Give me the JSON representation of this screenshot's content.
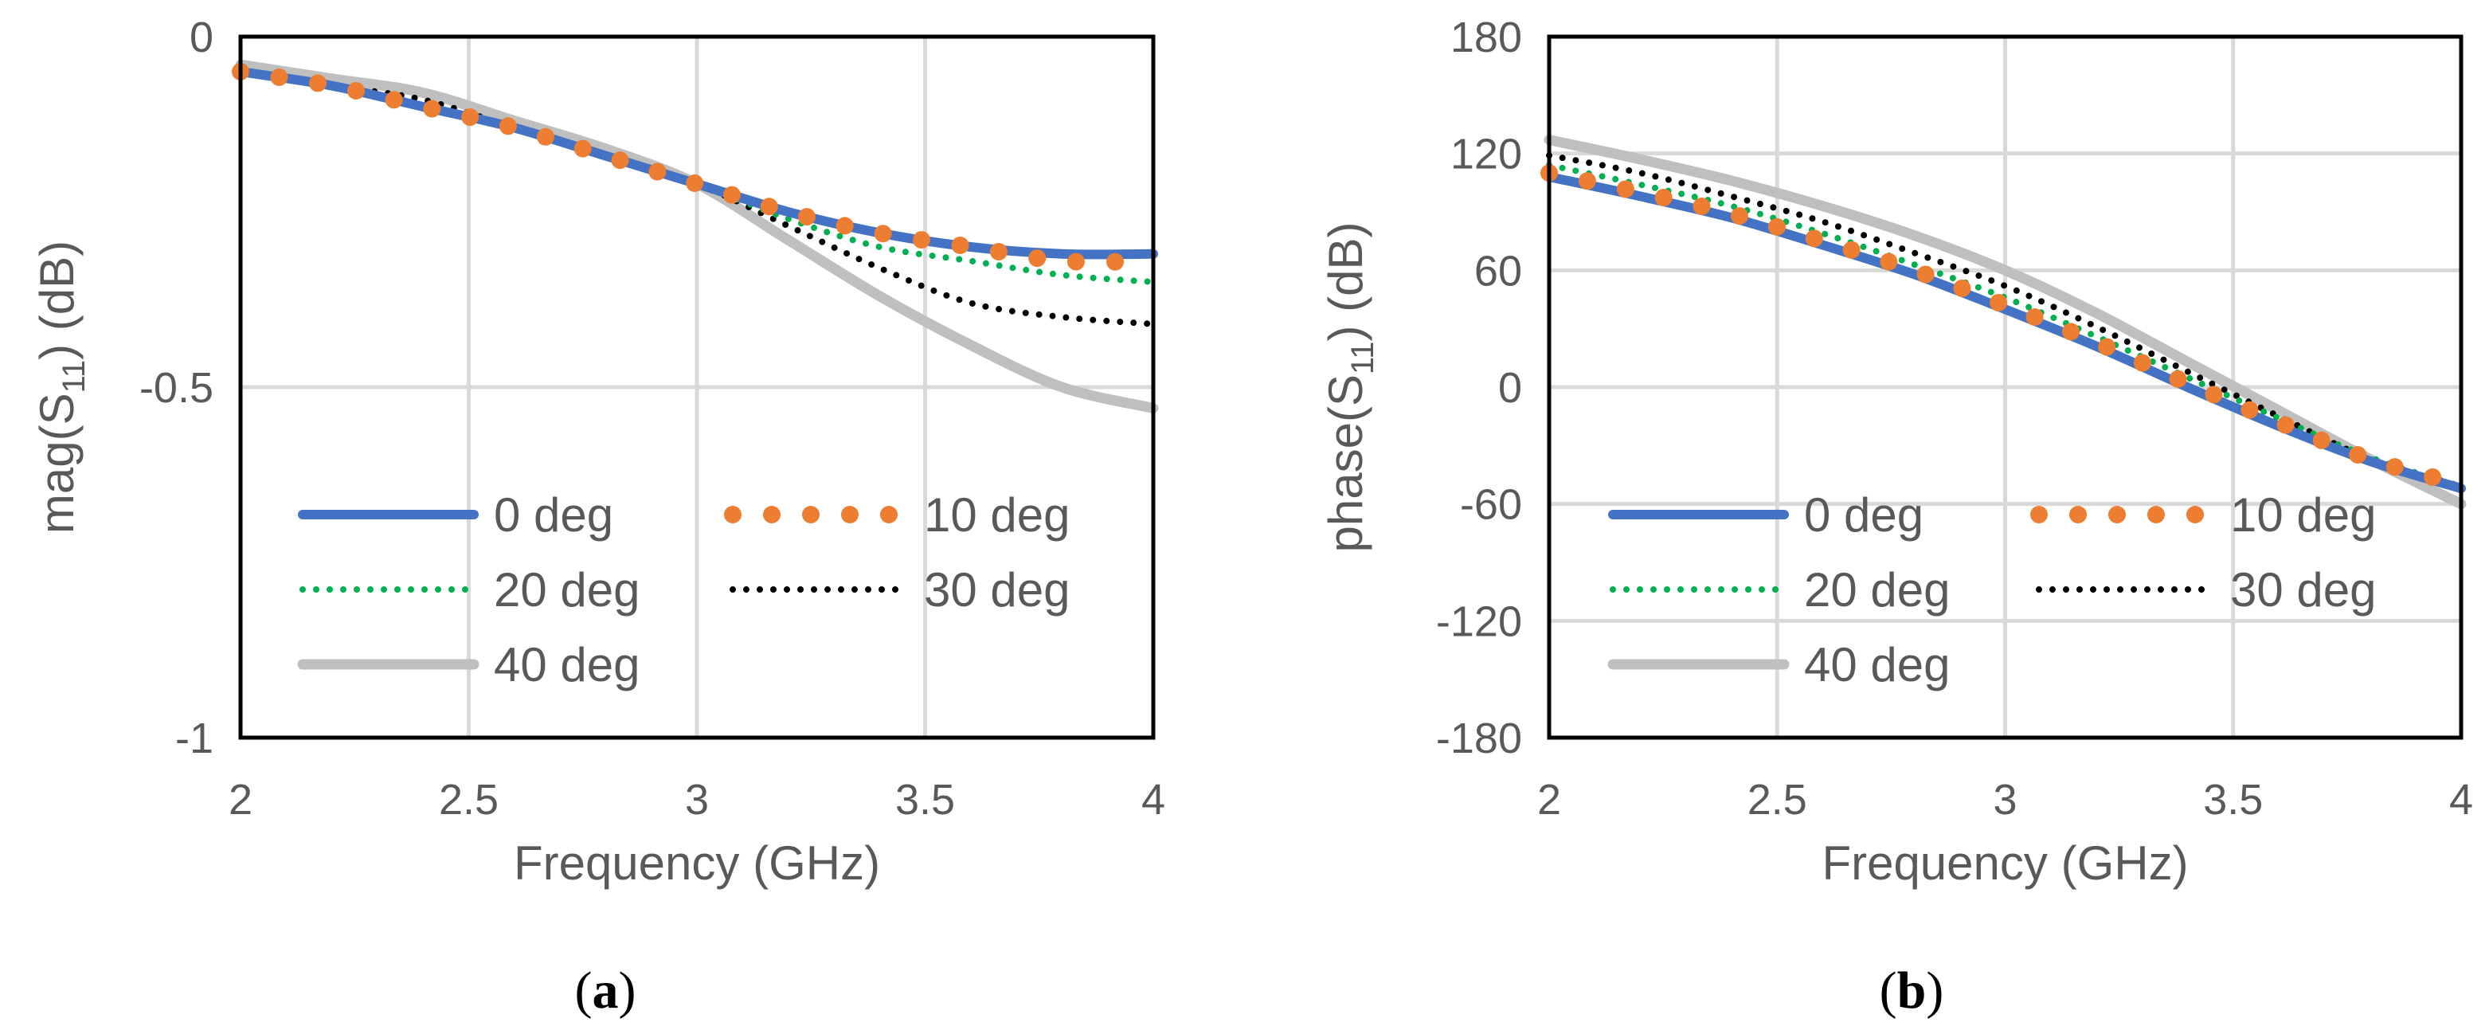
{
  "chart_data": [
    {
      "type": "line",
      "panel_label": "a",
      "xlabel": "Frequency (GHz)",
      "ylabel_main": "mag(S",
      "ylabel_sub": "11",
      "ylabel_tail": ") (dB)",
      "xlim": [
        2,
        4
      ],
      "ylim": [
        -1,
        0
      ],
      "xticks": [
        2,
        2.5,
        3,
        3.5,
        4
      ],
      "yticks": [
        0,
        -0.5,
        -1
      ],
      "xtick_labels": [
        "2",
        "2.5",
        "3",
        "3.5",
        "4"
      ],
      "ytick_labels": [
        "0",
        "-0.5",
        "-1"
      ],
      "grid": true,
      "x": [
        2.0,
        2.2,
        2.4,
        2.6,
        2.8,
        3.0,
        3.2,
        3.4,
        3.6,
        3.8,
        4.0
      ],
      "series": [
        {
          "name": "0 deg",
          "color": "#4472c4",
          "style": "solid",
          "values": [
            -0.05,
            -0.07,
            -0.1,
            -0.13,
            -0.17,
            -0.21,
            -0.25,
            -0.28,
            -0.3,
            -0.31,
            -0.31
          ]
        },
        {
          "name": "10 deg",
          "color": "#ed7d31",
          "style": "dots",
          "values": [
            -0.05,
            -0.07,
            -0.1,
            -0.13,
            -0.17,
            -0.21,
            -0.25,
            -0.28,
            -0.3,
            -0.32,
            -0.32
          ]
        },
        {
          "name": "20 deg",
          "color": "#00b050",
          "style": "dotted",
          "values": [
            -0.05,
            -0.07,
            -0.1,
            -0.13,
            -0.17,
            -0.21,
            -0.26,
            -0.3,
            -0.32,
            -0.34,
            -0.35
          ]
        },
        {
          "name": "30 deg",
          "color": "#000000",
          "style": "dotted",
          "values": [
            -0.05,
            -0.07,
            -0.09,
            -0.13,
            -0.17,
            -0.21,
            -0.27,
            -0.33,
            -0.38,
            -0.4,
            -0.41
          ]
        },
        {
          "name": "40 deg",
          "color": "#bfbfbf",
          "style": "solid",
          "values": [
            -0.04,
            -0.06,
            -0.08,
            -0.12,
            -0.16,
            -0.21,
            -0.29,
            -0.37,
            -0.44,
            -0.5,
            -0.53
          ]
        }
      ],
      "legend_placement": "bottom-inside"
    },
    {
      "type": "line",
      "panel_label": "b",
      "xlabel": "Frequency (GHz)",
      "ylabel_main": "phase(S",
      "ylabel_sub": "11",
      "ylabel_tail": ") (dB)",
      "xlim": [
        2,
        4
      ],
      "ylim": [
        -180,
        180
      ],
      "xticks": [
        2,
        2.5,
        3,
        3.5,
        4
      ],
      "yticks": [
        180,
        120,
        60,
        0,
        -60,
        -120,
        -180
      ],
      "xtick_labels": [
        "2",
        "2.5",
        "3",
        "3.5",
        "4"
      ],
      "ytick_labels": [
        "180",
        "120",
        "60",
        "0",
        "-60",
        "-120",
        "-180"
      ],
      "grid": true,
      "x": [
        2.0,
        2.2,
        2.4,
        2.6,
        2.8,
        3.0,
        3.2,
        3.4,
        3.6,
        3.8,
        4.0
      ],
      "series": [
        {
          "name": "0 deg",
          "color": "#4472c4",
          "style": "solid",
          "values": [
            108,
            98,
            87,
            73,
            58,
            40,
            21,
            0,
            -20,
            -38,
            -52
          ]
        },
        {
          "name": "10 deg",
          "color": "#ed7d31",
          "style": "dots",
          "values": [
            110,
            100,
            89,
            75,
            60,
            42,
            23,
            2,
            -18,
            -37,
            -50
          ]
        },
        {
          "name": "20 deg",
          "color": "#00b050",
          "style": "dotted",
          "values": [
            114,
            104,
            93,
            79,
            63,
            46,
            26,
            5,
            -16,
            -36,
            -51
          ]
        },
        {
          "name": "30 deg",
          "color": "#000000",
          "style": "dotted",
          "values": [
            119,
            110,
            98,
            85,
            69,
            52,
            31,
            8,
            -15,
            -37,
            -53
          ]
        },
        {
          "name": "40 deg",
          "color": "#bfbfbf",
          "style": "solid",
          "values": [
            127,
            117,
            106,
            93,
            78,
            60,
            38,
            13,
            -12,
            -37,
            -60
          ]
        }
      ],
      "legend_placement": "bottom-inside"
    }
  ]
}
